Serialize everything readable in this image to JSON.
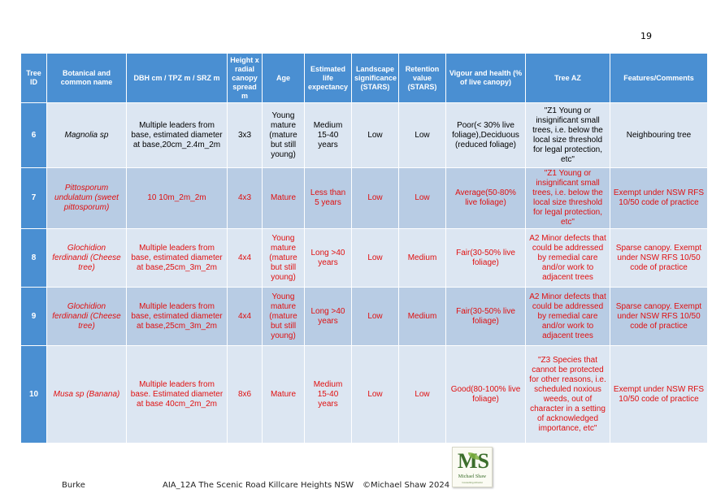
{
  "page_number": "19",
  "table": {
    "headers": [
      "Tree ID",
      "Botanical and common name",
      "DBH cm / TPZ m / SRZ m",
      "Height x radial canopy spread m",
      "Age",
      "Estimated life expectancy",
      "Landscape significance (STARS)",
      "Retention value (STARS)",
      "Vigour and health (% of live canopy)",
      "Tree AZ",
      "Features/Comments"
    ],
    "rows": [
      {
        "id": "6",
        "name": "Magnolia sp",
        "dbh": "Multiple leaders from base, estimated diameter at base,20cm_2.4m_2m",
        "height": "3x3",
        "age": "Young mature (mature but still young)",
        "life": "Medium 15-40 years",
        "landscape": "Low",
        "retention": "Low",
        "vigour": "Poor(< 30% live foliage),Deciduous (reduced foliage)",
        "tree_az": "\"Z1 Young or insignificant small trees, i.e. below the local size threshold for legal protection, etc\"",
        "comments": "Neighbouring tree"
      },
      {
        "id": "7",
        "name": "Pittosporum undulatum (sweet pittosporum)",
        "dbh": "10 10m_2m_2m",
        "height": "4x3",
        "age": "Mature",
        "life": "Less than 5 years",
        "landscape": "Low",
        "retention": "Low",
        "vigour": "Average(50-80% live foliage)",
        "tree_az": "\"Z1 Young or insignificant small trees, i.e. below the local size threshold for legal protection, etc\"",
        "comments": "Exempt under NSW RFS 10/50 code of practice"
      },
      {
        "id": "8",
        "name": "Glochidion ferdinandi (Cheese tree)",
        "dbh": "Multiple leaders from base, estimated diameter at base,25cm_3m_2m",
        "height": "4x4",
        "age": "Young mature (mature but still young)",
        "life": "Long >40 years",
        "landscape": "Low",
        "retention": "Medium",
        "vigour": "Fair(30-50% live foliage)",
        "tree_az": "A2 Minor defects that could be addressed by remedial care and/or work to adjacent trees",
        "comments": "Sparse canopy. Exempt under NSW RFS 10/50 code of practice"
      },
      {
        "id": "9",
        "name": "Glochidion ferdinandi (Cheese tree)",
        "dbh": "Multiple leaders from base, estimated diameter at base,25cm_3m_2m",
        "height": "4x4",
        "age": "Young mature (mature but still young)",
        "life": "Long >40 years",
        "landscape": "Low",
        "retention": "Medium",
        "vigour": "Fair(30-50% live foliage)",
        "tree_az": "A2 Minor defects that could be addressed by remedial care and/or work to adjacent trees",
        "comments": "Sparse canopy. Exempt under NSW RFS 10/50 code of practice"
      },
      {
        "id": "10",
        "name": "Musa sp (Banana)",
        "dbh": "Multiple leaders from base. Estimated diameter at base 40cm_2m_2m",
        "height": "8x6",
        "age": "Mature",
        "life": "Medium 15-40 years",
        "landscape": "Low",
        "retention": "Low",
        "vigour": "Good(80-100% live foliage)",
        "tree_az": "\"Z3 Species that cannot be protected for other reasons, i.e. scheduled noxious weeds, out of character in a setting of acknowledged importance, etc\"",
        "comments": "Exempt under NSW RFS 10/50 code of practice"
      }
    ]
  },
  "footer": {
    "left": "Burke",
    "center": "AIA_12A The Scenic Road Killcare Heights NSW",
    "copyright": "©Michael Shaw 2024"
  },
  "logo": {
    "mark": "MS",
    "name": "Michael Shaw",
    "tagline": "Consulting Arborist"
  },
  "colors": {
    "header_blue": "#4a8fd2",
    "row_light": "#dce6f2",
    "row_medium": "#b8cce4",
    "text_red": "#e01010"
  }
}
